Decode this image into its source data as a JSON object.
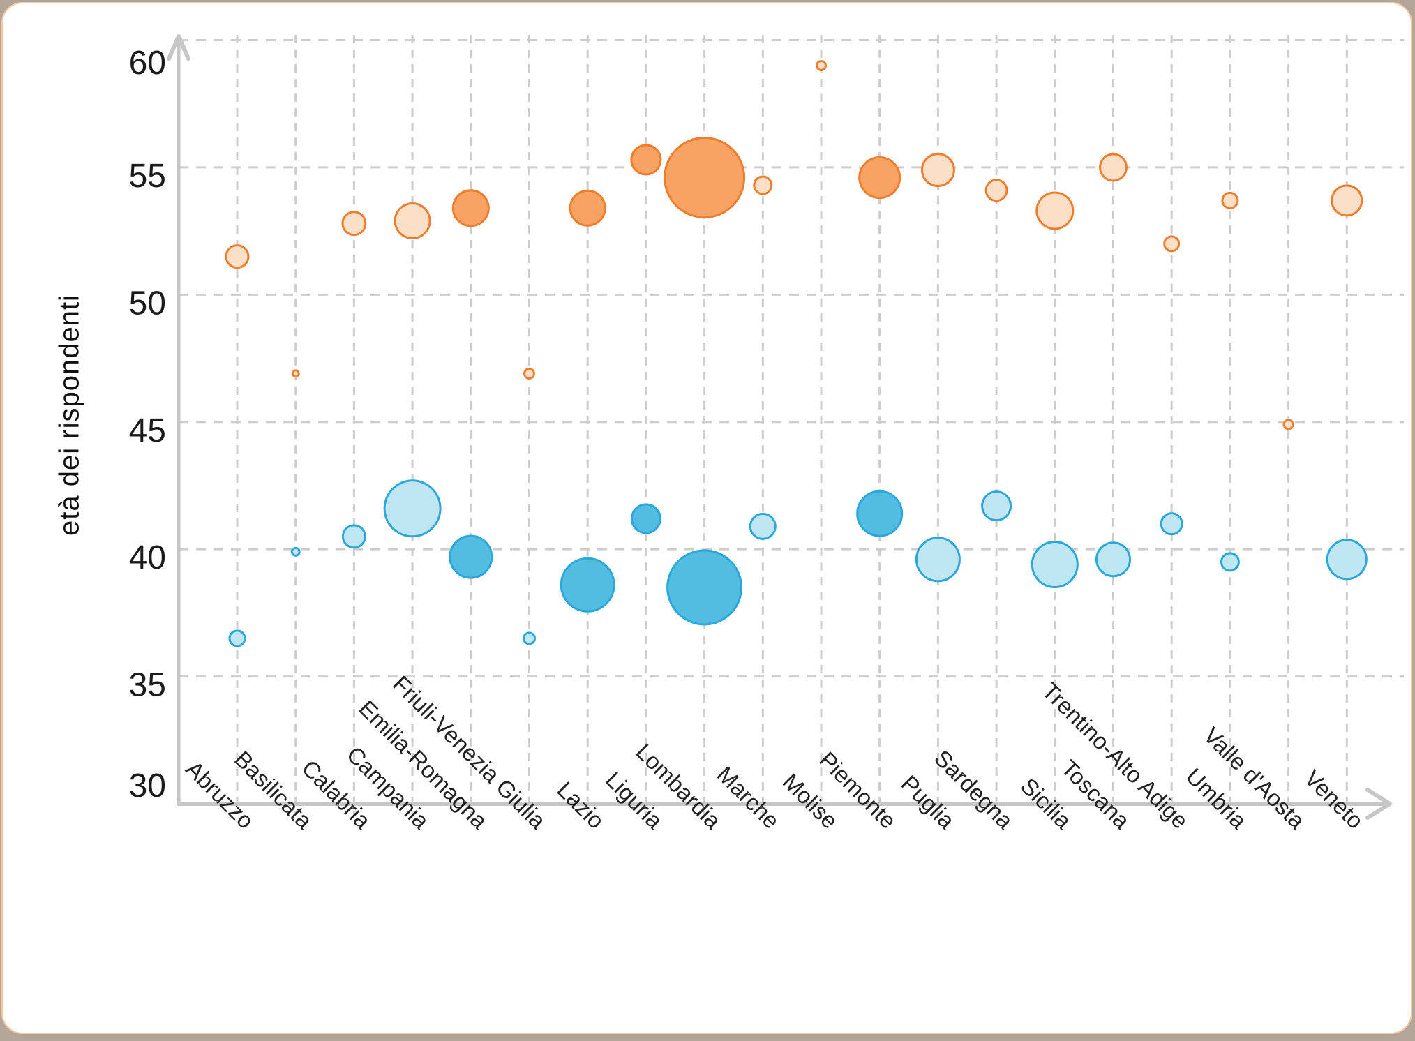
{
  "chart_data": {
    "type": "scatter",
    "subtype": "bubble",
    "y_axis_title": "età dei rispondenti",
    "x_axis_title": "",
    "ylim": [
      30,
      60
    ],
    "y_ticks": [
      60,
      55,
      50,
      45,
      40,
      35,
      30
    ],
    "grid": "dashed",
    "legend_position": "none",
    "categories": [
      "Abruzzo",
      "Basilicata",
      "Calabria",
      "Campania",
      "Emilia-Romagna",
      "Friuli-Venezia Giulia",
      "Lazio",
      "Liguria",
      "Lombardia",
      "Marche",
      "Molise",
      "Piemonte",
      "Puglia",
      "Sardegna",
      "Sicilia",
      "Toscana",
      "Trentino-Alto Adige",
      "Umbria",
      "Valle d'Aosta",
      "Veneto"
    ],
    "series": [
      {
        "id": "orange-older-group",
        "stroke": "#ef7d2e",
        "fill_light": "#fbdfc6",
        "fill_dark": "#f8a263",
        "points": [
          {
            "age": 51.5,
            "r": 16,
            "shade": "light"
          },
          {
            "age": 46.9,
            "r": 4.5,
            "shade": "light"
          },
          {
            "age": 52.8,
            "r": 16.5,
            "shade": "light"
          },
          {
            "age": 52.9,
            "r": 25,
            "shade": "light"
          },
          {
            "age": 53.4,
            "r": 25.5,
            "shade": "dark"
          },
          {
            "age": 46.9,
            "r": 7,
            "shade": "light"
          },
          {
            "age": 53.4,
            "r": 25,
            "shade": "dark"
          },
          {
            "age": 55.3,
            "r": 21,
            "shade": "dark"
          },
          {
            "age": 54.6,
            "r": 57,
            "shade": "dark"
          },
          {
            "age": 54.3,
            "r": 12.5,
            "shade": "light"
          },
          {
            "age": 59.0,
            "r": 6.5,
            "shade": "light"
          },
          {
            "age": 54.6,
            "r": 29,
            "shade": "dark"
          },
          {
            "age": 54.9,
            "r": 23,
            "shade": "light"
          },
          {
            "age": 54.1,
            "r": 15,
            "shade": "light"
          },
          {
            "age": 53.3,
            "r": 26,
            "shade": "light"
          },
          {
            "age": 55.0,
            "r": 19,
            "shade": "light"
          },
          {
            "age": 52.0,
            "r": 10.5,
            "shade": "light"
          },
          {
            "age": 53.7,
            "r": 11,
            "shade": "light"
          },
          {
            "age": 44.9,
            "r": 6.5,
            "shade": "light"
          },
          {
            "age": 53.7,
            "r": 21.5,
            "shade": "light"
          }
        ]
      },
      {
        "id": "blue-younger-group",
        "stroke": "#2ba7da",
        "fill_light": "#bfe6f3",
        "fill_dark": "#53bce1",
        "points": [
          {
            "age": 36.5,
            "r": 11,
            "shade": "light"
          },
          {
            "age": 39.9,
            "r": 5.5,
            "shade": "light"
          },
          {
            "age": 40.5,
            "r": 16,
            "shade": "light"
          },
          {
            "age": 41.6,
            "r": 40,
            "shade": "light"
          },
          {
            "age": 39.7,
            "r": 30,
            "shade": "dark"
          },
          {
            "age": 36.5,
            "r": 8,
            "shade": "light"
          },
          {
            "age": 38.6,
            "r": 38,
            "shade": "dark"
          },
          {
            "age": 41.2,
            "r": 20.5,
            "shade": "dark"
          },
          {
            "age": 38.5,
            "r": 53,
            "shade": "dark"
          },
          {
            "age": 40.9,
            "r": 18,
            "shade": "light"
          },
          null,
          {
            "age": 41.4,
            "r": 32,
            "shade": "dark"
          },
          {
            "age": 39.6,
            "r": 31,
            "shade": "light"
          },
          {
            "age": 41.7,
            "r": 20.5,
            "shade": "light"
          },
          {
            "age": 39.4,
            "r": 32.5,
            "shade": "light"
          },
          {
            "age": 39.6,
            "r": 24,
            "shade": "light"
          },
          {
            "age": 41.0,
            "r": 15,
            "shade": "light"
          },
          {
            "age": 39.5,
            "r": 12.5,
            "shade": "light"
          },
          null,
          {
            "age": 39.6,
            "r": 28,
            "shade": "light"
          }
        ]
      }
    ],
    "style": {
      "gridline_color": "#cdcdcd",
      "axis_color": "#c6c6c6",
      "tick_label_color": "#1b1b1b",
      "category_label_color": "#222222",
      "card_border_color": "#f6c8a2",
      "outer_background": "#b3a698",
      "plot_background": "#ffffff"
    }
  }
}
